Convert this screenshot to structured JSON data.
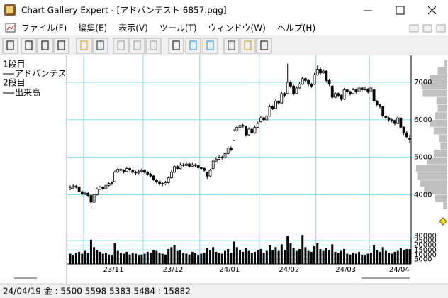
{
  "window": {
    "title": "Chart Gallery Expert - [アドバンテスト 6857.pqg]"
  },
  "menu": [
    "ファイル(F)",
    "編集(E)",
    "表示(V)",
    "ツール(T)",
    "ウィンドウ(W)",
    "ヘルプ(H)"
  ],
  "panes": [
    "1段目",
    "アドバンテスト",
    "2段目",
    "出来高"
  ],
  "status_bar": "24/04/19 金 : 5500 5598 5383 5484 : 15882",
  "chart_data": [
    {
      "type": "candlestick",
      "categories": [
        null,
        null,
        null,
        null,
        null,
        "23/11",
        null,
        null,
        null,
        null,
        null,
        null,
        null,
        null,
        null,
        null,
        null,
        null,
        null,
        null,
        null,
        null,
        null,
        null,
        null,
        "23/12",
        null,
        null,
        null,
        null,
        null,
        null,
        null,
        null,
        null,
        null,
        null,
        null,
        null,
        null,
        null,
        null,
        null,
        null,
        "24/01",
        null,
        null,
        null,
        null,
        null,
        null,
        null,
        null,
        null,
        null,
        null,
        null,
        null,
        null,
        null,
        null,
        null,
        null,
        null,
        "24/02",
        null,
        null,
        null,
        null,
        null,
        null,
        null,
        null,
        null,
        null,
        null,
        null,
        null,
        null,
        null,
        null,
        null,
        null,
        "24/03",
        null,
        null,
        null,
        null,
        null,
        null,
        null,
        null,
        null,
        null,
        null,
        null,
        null,
        null,
        null,
        null,
        null,
        "24/04",
        null,
        null,
        null,
        null,
        null,
        null,
        null,
        null,
        null,
        null,
        null,
        null,
        null
      ],
      "open": [
        4150,
        4180,
        4230,
        4200,
        4080,
        4020,
        4040,
        3980,
        3800,
        4000,
        4150,
        4200,
        4160,
        4250,
        4300,
        4350,
        4600,
        4680,
        4650,
        4620,
        4700,
        4660,
        4600,
        4580,
        4620,
        4650,
        4600,
        4550,
        4500,
        4400,
        4350,
        4300,
        4280,
        4320,
        4450,
        4600,
        4750,
        4700,
        4800,
        4780,
        4820,
        4760,
        4800,
        4780,
        4720,
        4700,
        4600,
        4500,
        4700,
        4900,
        4950,
        5000,
        4980,
        5100,
        5250,
        5450,
        5700,
        5800,
        5850,
        5830,
        5600,
        5750,
        5650,
        5800,
        5950,
        6050,
        6000,
        6100,
        6350,
        6300,
        6500,
        6450,
        6700,
        6700,
        7000,
        6900,
        6700,
        6850,
        6950,
        7100,
        7050,
        6950,
        6950,
        7200,
        7350,
        7250,
        7300,
        7050,
        6900,
        6600,
        6700,
        6650,
        6550,
        6800,
        6750,
        6700,
        6800,
        6750,
        6850,
        6800,
        6820,
        6750,
        6800,
        6500,
        6400,
        6350,
        6100,
        6050,
        6000,
        5980,
        5900,
        6050,
        5800,
        5650,
        5500
      ],
      "high": [
        4250,
        4280,
        4260,
        4220,
        4120,
        4090,
        4070,
        4000,
        4040,
        4190,
        4240,
        4230,
        4290,
        4340,
        4360,
        4650,
        4730,
        4720,
        4680,
        4750,
        4730,
        4690,
        4640,
        4670,
        4700,
        4680,
        4630,
        4580,
        4530,
        4430,
        4380,
        4340,
        4370,
        4490,
        4650,
        4800,
        4790,
        4850,
        4840,
        4870,
        4850,
        4850,
        4830,
        4800,
        4750,
        4730,
        4620,
        4690,
        4950,
        5000,
        5050,
        5040,
        5150,
        5300,
        5290,
        5750,
        5850,
        5900,
        5890,
        5840,
        5800,
        5780,
        5850,
        5950,
        6100,
        6080,
        6150,
        6400,
        6390,
        6550,
        6530,
        6750,
        6740,
        7500,
        7050,
        6950,
        6900,
        7000,
        7150,
        7130,
        7080,
        6980,
        7250,
        7450,
        7400,
        7350,
        7320,
        7080,
        6920,
        6750,
        6730,
        6680,
        6850,
        6830,
        6780,
        6850,
        6830,
        6900,
        6880,
        6870,
        6850,
        6900,
        6820,
        6530,
        6430,
        6370,
        6130,
        6080,
        6030,
        6000,
        6100,
        6080,
        5830,
        5700,
        5598
      ],
      "low": [
        4120,
        4150,
        4170,
        4050,
        3980,
        3990,
        3940,
        3650,
        3780,
        3980,
        4120,
        4110,
        4140,
        4220,
        4260,
        4330,
        4580,
        4610,
        4570,
        4600,
        4620,
        4560,
        4530,
        4550,
        4590,
        4560,
        4510,
        4460,
        4370,
        4300,
        4250,
        4230,
        4260,
        4300,
        4430,
        4580,
        4660,
        4680,
        4740,
        4760,
        4720,
        4740,
        4740,
        4680,
        4660,
        4610,
        4420,
        4480,
        4680,
        4870,
        4920,
        4940,
        4960,
        5080,
        5160,
        5430,
        5680,
        5780,
        5790,
        5550,
        5580,
        5610,
        5630,
        5780,
        5930,
        5960,
        5980,
        6080,
        6260,
        6280,
        6400,
        6430,
        6600,
        6680,
        6850,
        6650,
        6680,
        6830,
        6930,
        7000,
        6900,
        6850,
        6930,
        7180,
        7200,
        7230,
        7000,
        6900,
        6550,
        6580,
        6600,
        6500,
        6530,
        6700,
        6650,
        6680,
        6700,
        6730,
        6750,
        6780,
        6700,
        6730,
        6450,
        6350,
        6300,
        6050,
        6000,
        5950,
        5930,
        5850,
        5880,
        5750,
        5600,
        5500,
        5383
      ],
      "close": [
        4180,
        4230,
        4200,
        4080,
        4020,
        4040,
        3980,
        3800,
        4000,
        4150,
        4200,
        4160,
        4250,
        4300,
        4320,
        4600,
        4680,
        4650,
        4620,
        4700,
        4660,
        4600,
        4580,
        4620,
        4650,
        4600,
        4550,
        4500,
        4400,
        4350,
        4300,
        4280,
        4320,
        4450,
        4600,
        4750,
        4700,
        4800,
        4780,
        4820,
        4760,
        4800,
        4780,
        4720,
        4700,
        4650,
        4500,
        4650,
        4900,
        4950,
        5000,
        4980,
        5100,
        5250,
        5200,
        5700,
        5800,
        5850,
        5830,
        5600,
        5750,
        5650,
        5800,
        5900,
        6050,
        6000,
        6100,
        6350,
        6300,
        6500,
        6450,
        6700,
        6650,
        7000,
        6900,
        6700,
        6850,
        6950,
        7100,
        7050,
        6950,
        6900,
        7200,
        7350,
        7250,
        7300,
        7050,
        6950,
        6600,
        6700,
        6650,
        6550,
        6800,
        6750,
        6700,
        6800,
        6750,
        6850,
        6800,
        6820,
        6750,
        6850,
        6500,
        6400,
        6350,
        6100,
        6050,
        6000,
        5980,
        5900,
        6050,
        5800,
        5650,
        5550,
        5484
      ],
      "color": "#000000",
      "ylim": [
        3100,
        7530
      ],
      "yticks": [
        4000,
        5000,
        6000,
        7000
      ],
      "grid": true,
      "volume_profile": {
        "bins": [
          3600,
          3800,
          4000,
          4200,
          4400,
          4600,
          4800,
          5000,
          5200,
          5400,
          5600,
          5800,
          6000,
          6200,
          6400,
          6600,
          6800,
          7000,
          7200,
          7400,
          7600
        ],
        "values": [
          6,
          18,
          34,
          40,
          44,
          46,
          30,
          20,
          10,
          12,
          20,
          26,
          18,
          14,
          16,
          36,
          38,
          26,
          14,
          4
        ],
        "xlim": [
          0,
          50
        ],
        "color": "#c0c0c0"
      }
    },
    {
      "type": "bar",
      "values": [
        11000,
        9000,
        12000,
        13000,
        11000,
        14000,
        12000,
        26000,
        18000,
        15000,
        13000,
        11000,
        12000,
        10000,
        9000,
        22000,
        14000,
        12000,
        11000,
        13000,
        10000,
        12000,
        11000,
        9000,
        10000,
        11000,
        13000,
        12000,
        15000,
        14000,
        12000,
        11000,
        10000,
        16000,
        18000,
        20000,
        14000,
        15000,
        12000,
        11000,
        10000,
        13000,
        12000,
        9000,
        11000,
        12000,
        17000,
        15000,
        18000,
        13000,
        12000,
        11000,
        14000,
        16000,
        12000,
        24000,
        18000,
        15000,
        13000,
        17000,
        14000,
        12000,
        13000,
        15000,
        16000,
        12000,
        14000,
        20000,
        15000,
        18000,
        14000,
        21000,
        15000,
        30000,
        22000,
        17000,
        14000,
        16000,
        31000,
        18000,
        14000,
        13000,
        19000,
        22000,
        16000,
        14000,
        17000,
        15000,
        21000,
        13000,
        12000,
        14000,
        16000,
        11000,
        10000,
        12000,
        11000,
        13000,
        10000,
        9000,
        11000,
        12000,
        20000,
        15000,
        13000,
        18000,
        14000,
        12000,
        11000,
        13000,
        14000,
        17000,
        15000,
        16000,
        15882
      ],
      "color": "#000000",
      "ylim": [
        0,
        38000
      ],
      "yticks": [
        5000,
        10000,
        15000,
        20000,
        25000,
        30000
      ],
      "grid": true
    }
  ]
}
